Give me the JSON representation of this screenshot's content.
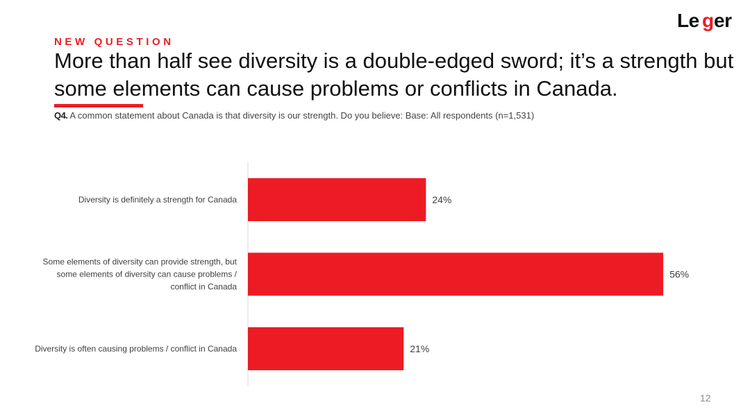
{
  "brand": {
    "logo_text": "Leger",
    "accent_color": "#ed1c24"
  },
  "header": {
    "kicker": "NEW QUESTION",
    "title": "More than half see diversity is a double-edged sword; it’s a strength but some elements can cause problems or conflicts in Canada."
  },
  "question": {
    "number": "Q4.",
    "text": " A common statement about Canada is that diversity is our strength. Do you believe: Base: All respondents (n=1,531)"
  },
  "chart_data": {
    "type": "bar",
    "orientation": "horizontal",
    "categories": [
      [
        "Diversity is definitely a strength for Canada"
      ],
      [
        "Some elements of diversity can provide strength, but",
        "some elements of diversity can cause problems /",
        "conflict in Canada"
      ],
      [
        "Diversity is often causing problems / conflict in Canada"
      ]
    ],
    "values": [
      24,
      56,
      21
    ],
    "value_labels": [
      "24%",
      "56%",
      "21%"
    ],
    "unit": "%",
    "xlim": [
      0,
      60
    ],
    "bar_color": "#ed1c24",
    "grid": false,
    "legend": "none"
  },
  "footer": {
    "page_number": "12"
  }
}
